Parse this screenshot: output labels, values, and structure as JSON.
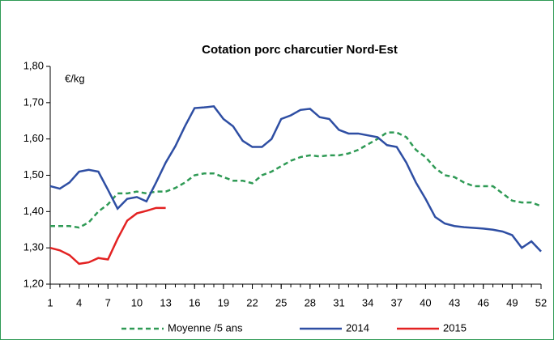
{
  "chart_data": {
    "type": "line",
    "title": "Cotation porc charcutier Nord-Est",
    "y_unit": "€/kg",
    "x": [
      1,
      2,
      3,
      4,
      5,
      6,
      7,
      8,
      9,
      10,
      11,
      12,
      13,
      14,
      15,
      16,
      17,
      18,
      19,
      20,
      21,
      22,
      23,
      24,
      25,
      26,
      27,
      28,
      29,
      30,
      31,
      32,
      33,
      34,
      35,
      36,
      37,
      38,
      39,
      40,
      41,
      42,
      43,
      44,
      45,
      46,
      47,
      48,
      49,
      50,
      51,
      52
    ],
    "series": [
      {
        "name": "Moyenne /5 ans",
        "color": "#2f9a55",
        "dash": true,
        "values": [
          1.36,
          1.36,
          1.36,
          1.356,
          1.37,
          1.4,
          1.42,
          1.45,
          1.45,
          1.455,
          1.45,
          1.455,
          1.455,
          1.465,
          1.48,
          1.5,
          1.505,
          1.505,
          1.495,
          1.485,
          1.485,
          1.478,
          1.5,
          1.51,
          1.525,
          1.54,
          1.55,
          1.555,
          1.552,
          1.555,
          1.555,
          1.56,
          1.57,
          1.585,
          1.6,
          1.618,
          1.618,
          1.605,
          1.57,
          1.55,
          1.52,
          1.5,
          1.495,
          1.48,
          1.47,
          1.47,
          1.47,
          1.45,
          1.43,
          1.425,
          1.425,
          1.415
        ]
      },
      {
        "name": "2014",
        "color": "#2e4ea3",
        "dash": false,
        "values": [
          1.47,
          1.463,
          1.48,
          1.51,
          1.515,
          1.51,
          1.46,
          1.408,
          1.435,
          1.44,
          1.428,
          1.48,
          1.535,
          1.58,
          1.635,
          1.685,
          1.687,
          1.69,
          1.655,
          1.635,
          1.595,
          1.578,
          1.578,
          1.6,
          1.655,
          1.665,
          1.68,
          1.683,
          1.66,
          1.655,
          1.625,
          1.615,
          1.615,
          1.61,
          1.605,
          1.583,
          1.578,
          1.535,
          1.48,
          1.435,
          1.385,
          1.367,
          1.36,
          1.357,
          1.355,
          1.353,
          1.35,
          1.345,
          1.335,
          1.3,
          1.318,
          1.29
        ]
      },
      {
        "name": "2015",
        "color": "#e32222",
        "dash": false,
        "values": [
          1.3,
          1.293,
          1.28,
          1.256,
          1.26,
          1.272,
          1.268,
          1.325,
          1.375,
          1.395,
          1.402,
          1.41,
          1.41,
          null,
          null,
          null,
          null,
          null,
          null,
          null,
          null,
          null,
          null,
          null,
          null,
          null,
          null,
          null,
          null,
          null,
          null,
          null,
          null,
          null,
          null,
          null,
          null,
          null,
          null,
          null,
          null,
          null,
          null,
          null,
          null,
          null,
          null,
          null,
          null,
          null,
          null,
          null
        ]
      }
    ],
    "xlim": [
      1,
      52
    ],
    "xticks": [
      1,
      4,
      7,
      10,
      13,
      16,
      19,
      22,
      25,
      28,
      31,
      34,
      37,
      40,
      43,
      46,
      49,
      52
    ],
    "ylim": [
      1.2,
      1.8
    ],
    "yticks": [
      {
        "value": 1.2,
        "label": "1,20"
      },
      {
        "value": 1.3,
        "label": "1,30"
      },
      {
        "value": 1.4,
        "label": "1,40"
      },
      {
        "value": 1.5,
        "label": "1,50"
      },
      {
        "value": 1.6,
        "label": "1,60"
      },
      {
        "value": 1.7,
        "label": "1,70"
      },
      {
        "value": 1.8,
        "label": "1,80"
      }
    ],
    "legend": "bottom"
  }
}
